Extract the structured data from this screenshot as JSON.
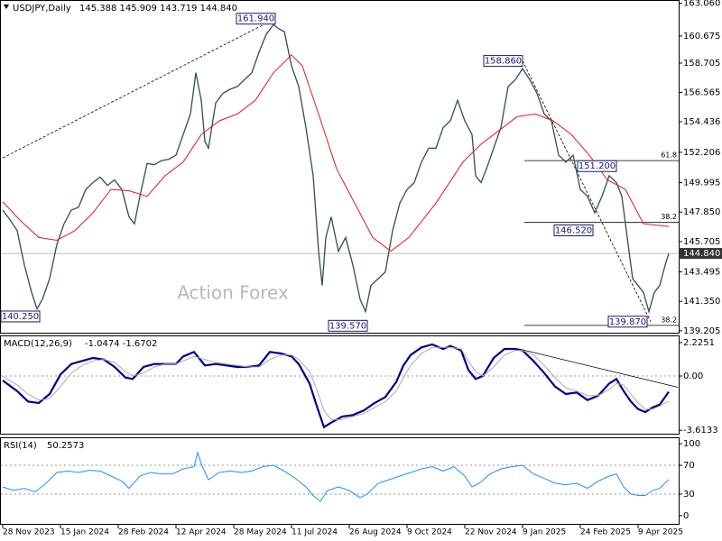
{
  "chart_data": [
    {
      "type": "line",
      "title": "USDJPY,Daily",
      "subtitle": "145.388 145.909 143.719 144.840",
      "watermark": "Action Forex",
      "xlim": [
        0,
        374.5
      ],
      "ylim": [
        139.0,
        163.3
      ],
      "yticks": [
        {
          "value": 163.06,
          "label": "163.060"
        },
        {
          "value": 160.675,
          "label": "160.675"
        },
        {
          "value": 158.705,
          "label": "158.705"
        },
        {
          "value": 156.565,
          "label": "156.565"
        },
        {
          "value": 154.436,
          "label": "154.436"
        },
        {
          "value": 152.206,
          "label": "152.206"
        },
        {
          "value": 149.995,
          "label": "149.995"
        },
        {
          "value": 147.85,
          "label": "147.850"
        },
        {
          "value": 145.705,
          "label": "145.705"
        },
        {
          "value": 143.495,
          "label": "143.495"
        },
        {
          "value": 141.35,
          "label": "141.350"
        },
        {
          "value": 139.205,
          "label": "139.205"
        }
      ],
      "series": [
        {
          "color": "#2f4f4f",
          "x": [
            0,
            4,
            8,
            12,
            16,
            19,
            22,
            26,
            30,
            34,
            38,
            42,
            46,
            50,
            54,
            58,
            62,
            66,
            70,
            73,
            76,
            80,
            84,
            88,
            92,
            96,
            100,
            104,
            107,
            110,
            112,
            114,
            118,
            122,
            126,
            130,
            134,
            138,
            142,
            146,
            150,
            153,
            156,
            160,
            164,
            168,
            172,
            175,
            177,
            179,
            182,
            186,
            190,
            194,
            198,
            201,
            204,
            208,
            212,
            216,
            220,
            224,
            228,
            232,
            236,
            240,
            244,
            248,
            252,
            256,
            260,
            262,
            265,
            268,
            272,
            276,
            280,
            284,
            288,
            292,
            296,
            300,
            304,
            308,
            312,
            316,
            320,
            324,
            328,
            332,
            336,
            340,
            343,
            346,
            349,
            352,
            355,
            358,
            361,
            364,
            367,
            369
          ],
          "values": [
            148.0,
            147.3,
            146.5,
            144.0,
            142.0,
            140.8,
            141.5,
            143.0,
            145.5,
            147.0,
            148.0,
            148.2,
            149.5,
            150.0,
            150.4,
            149.8,
            150.2,
            149.5,
            147.5,
            147.0,
            149.0,
            151.4,
            151.3,
            151.6,
            151.7,
            152.0,
            153.5,
            155.0,
            158.0,
            156.0,
            153.0,
            152.5,
            155.8,
            156.5,
            156.8,
            157.0,
            157.5,
            158.0,
            159.5,
            160.8,
            161.5,
            161.2,
            161.0,
            158.5,
            157.0,
            154.0,
            150.5,
            145.0,
            142.5,
            146.0,
            147.5,
            145.0,
            146.0,
            144.0,
            141.5,
            140.6,
            142.5,
            143.0,
            143.5,
            146.5,
            148.5,
            149.5,
            150.0,
            151.5,
            152.5,
            152.5,
            154.0,
            154.5,
            156.0,
            154.5,
            153.5,
            150.5,
            150.0,
            151.0,
            152.5,
            154.0,
            157.0,
            157.5,
            158.3,
            157.5,
            156.5,
            155.0,
            154.5,
            152.0,
            151.5,
            152.0,
            149.5,
            149.0,
            147.8,
            149.0,
            150.5,
            150.0,
            149.0,
            146.0,
            143.0,
            142.5,
            142.0,
            140.6,
            142.0,
            142.5,
            144.0,
            144.84
          ]
        },
        {
          "color": "#e0191b",
          "x": [
            0,
            10,
            20,
            30,
            40,
            50,
            60,
            70,
            80,
            90,
            100,
            110,
            120,
            130,
            140,
            150,
            160,
            166,
            175,
            185,
            195,
            205,
            215,
            225,
            240,
            255,
            265,
            275,
            285,
            295,
            305,
            315,
            325,
            335,
            345,
            355,
            369
          ],
          "values": [
            148.6,
            147.2,
            146.0,
            145.8,
            146.5,
            147.8,
            149.5,
            149.4,
            149.0,
            150.5,
            151.5,
            153.5,
            154.5,
            155.0,
            156.0,
            158.0,
            159.3,
            158.5,
            155.0,
            151.0,
            148.5,
            146.0,
            145.0,
            146.0,
            148.5,
            151.5,
            152.8,
            153.8,
            154.8,
            155.0,
            154.5,
            153.5,
            152.0,
            150.2,
            149.5,
            147.0,
            146.8
          ]
        }
      ],
      "last_price": {
        "value": 144.84,
        "label": "144.840"
      },
      "annotations": [
        {
          "label": "161.940",
          "x": 151,
          "y": 161.94
        },
        {
          "label": "158.860",
          "x": 288,
          "y": 158.86
        },
        {
          "label": "151.200",
          "x": 340,
          "y": 151.2
        },
        {
          "label": "146.520",
          "x": 327,
          "y": 146.52
        },
        {
          "label": "139.870",
          "x": 357,
          "y": 139.87
        },
        {
          "label": "139.570",
          "x": 202,
          "y": 139.57
        },
        {
          "label": "140.250",
          "x": 17,
          "y": 140.25
        }
      ],
      "fib_start": 289,
      "fib_levels": [
        {
          "label": "61.8",
          "value": 151.6
        },
        {
          "label": "38.2",
          "value": 147.1
        },
        {
          "label": "38.2",
          "value": 139.6
        }
      ],
      "trendlines": [
        {
          "x": [
            0,
            151
          ],
          "y": [
            151.8,
            161.94
          ]
        },
        {
          "x": [
            288,
            359
          ],
          "y": [
            158.86,
            139.87
          ]
        }
      ]
    },
    {
      "type": "line",
      "title": "MACD(12,26,9)",
      "subtitle": "-1.0474 -1.6702",
      "xlim": [
        0,
        374.5
      ],
      "ylim": [
        -3.9,
        2.7
      ],
      "yticks": [
        2.2251,
        {
          "value": 0,
          "label": "0.00"
        },
        -3.6133
      ],
      "levels": [
        0
      ],
      "series": [
        {
          "color": "#00008b",
          "x": [
            0,
            8,
            14,
            20,
            26,
            32,
            38,
            44,
            50,
            56,
            62,
            68,
            72,
            78,
            84,
            90,
            96,
            100,
            106,
            112,
            118,
            124,
            130,
            136,
            142,
            148,
            154,
            160,
            164,
            170,
            174,
            178,
            182,
            188,
            194,
            200,
            206,
            212,
            218,
            222,
            226,
            232,
            238,
            244,
            248,
            254,
            258,
            262,
            266,
            272,
            278,
            284,
            288,
            294,
            300,
            306,
            312,
            318,
            324,
            330,
            336,
            340,
            344,
            348,
            352,
            356,
            360,
            364,
            369
          ],
          "values": [
            -0.3,
            -1.0,
            -1.7,
            -1.8,
            -1.2,
            0.1,
            0.8,
            1.0,
            1.2,
            1.1,
            0.6,
            -0.1,
            -0.2,
            0.6,
            0.8,
            0.8,
            0.8,
            1.3,
            1.6,
            0.7,
            0.8,
            0.7,
            0.6,
            0.6,
            0.7,
            1.6,
            1.5,
            1.3,
            0.8,
            -0.5,
            -2.0,
            -3.4,
            -3.1,
            -2.7,
            -2.6,
            -2.3,
            -1.8,
            -1.4,
            -0.4,
            0.7,
            1.4,
            1.9,
            2.1,
            1.8,
            2.0,
            1.7,
            0.4,
            -0.2,
            0.0,
            1.2,
            1.8,
            1.8,
            1.7,
            1.0,
            0.2,
            -0.7,
            -1.2,
            -1.1,
            -1.6,
            -1.3,
            -0.5,
            -0.2,
            -1.0,
            -1.7,
            -2.2,
            -2.4,
            -2.1,
            -1.9,
            -1.05
          ]
        },
        {
          "color": "#a9a9a9",
          "x": [
            0,
            8,
            14,
            20,
            26,
            32,
            38,
            44,
            50,
            56,
            62,
            68,
            72,
            78,
            84,
            90,
            96,
            100,
            106,
            112,
            118,
            124,
            130,
            136,
            142,
            148,
            154,
            160,
            164,
            170,
            174,
            178,
            182,
            188,
            194,
            200,
            206,
            212,
            218,
            222,
            226,
            232,
            238,
            244,
            248,
            254,
            258,
            262,
            266,
            272,
            278,
            284,
            288,
            294,
            300,
            306,
            312,
            318,
            324,
            330,
            336,
            340,
            344,
            348,
            352,
            356,
            360,
            364,
            369
          ],
          "values": [
            0.0,
            -0.6,
            -1.2,
            -1.6,
            -1.5,
            -0.7,
            0.2,
            0.7,
            1.0,
            1.1,
            0.9,
            0.3,
            0.0,
            0.2,
            0.6,
            0.8,
            0.8,
            1.0,
            1.3,
            1.1,
            0.9,
            0.8,
            0.7,
            0.6,
            0.6,
            1.1,
            1.4,
            1.4,
            1.1,
            0.3,
            -0.9,
            -2.3,
            -2.9,
            -2.9,
            -2.7,
            -2.5,
            -2.1,
            -1.7,
            -1.0,
            -0.1,
            0.7,
            1.5,
            1.9,
            1.9,
            1.9,
            1.8,
            1.0,
            0.3,
            0.0,
            0.6,
            1.4,
            1.7,
            1.7,
            1.4,
            0.7,
            -0.1,
            -0.8,
            -1.0,
            -1.3,
            -1.3,
            -0.9,
            -0.5,
            -0.6,
            -1.2,
            -1.8,
            -2.2,
            -2.2,
            -2.0,
            -1.67
          ]
        }
      ],
      "trendline": {
        "x": [
          286,
          374
        ],
        "y": [
          1.8,
          -0.75
        ]
      }
    },
    {
      "type": "line",
      "title": "RSI(14)",
      "subtitle": "50.2573",
      "xlim": [
        0,
        374.5
      ],
      "ylim": [
        -12.7,
        108.9
      ],
      "yticks": [
        100,
        70,
        30,
        0
      ],
      "levels": [
        70,
        30
      ],
      "xticks": [
        {
          "value": 0,
          "label": "28 Nov 2023"
        },
        {
          "value": 32,
          "label": "15 Jan 2024"
        },
        {
          "value": 64,
          "label": "28 Feb 2024"
        },
        {
          "value": 96,
          "label": "12 Apr 2024"
        },
        {
          "value": 128,
          "label": "28 May 2024"
        },
        {
          "value": 160,
          "label": "11 Jul 2024"
        },
        {
          "value": 192,
          "label": "26 Aug 2024"
        },
        {
          "value": 224,
          "label": "9 Oct 2024"
        },
        {
          "value": 256,
          "label": "22 Nov 2024"
        },
        {
          "value": 288,
          "label": "9 Jan 2025"
        },
        {
          "value": 320,
          "label": "24 Feb 2025"
        },
        {
          "value": 352,
          "label": "9 Apr 2025"
        }
      ],
      "series": [
        {
          "color": "#1e90ff",
          "x": [
            0,
            6,
            12,
            18,
            24,
            30,
            36,
            42,
            48,
            54,
            60,
            66,
            70,
            76,
            82,
            88,
            94,
            100,
            106,
            108,
            110,
            114,
            120,
            126,
            132,
            138,
            144,
            150,
            156,
            162,
            168,
            172,
            176,
            180,
            186,
            192,
            198,
            202,
            208,
            214,
            220,
            226,
            232,
            238,
            244,
            250,
            256,
            260,
            264,
            270,
            276,
            282,
            288,
            294,
            300,
            306,
            312,
            318,
            324,
            330,
            336,
            340,
            344,
            348,
            352,
            356,
            360,
            364,
            369
          ],
          "values": [
            40,
            35,
            38,
            33,
            45,
            60,
            62,
            60,
            63,
            62,
            55,
            48,
            38,
            55,
            60,
            58,
            58,
            65,
            68,
            88,
            72,
            50,
            60,
            62,
            60,
            62,
            68,
            70,
            62,
            52,
            40,
            28,
            20,
            35,
            40,
            35,
            25,
            30,
            45,
            50,
            55,
            60,
            65,
            68,
            62,
            68,
            55,
            40,
            45,
            58,
            65,
            68,
            70,
            58,
            52,
            45,
            43,
            45,
            38,
            48,
            55,
            58,
            40,
            30,
            28,
            28,
            35,
            38,
            50.26
          ]
        }
      ]
    }
  ]
}
